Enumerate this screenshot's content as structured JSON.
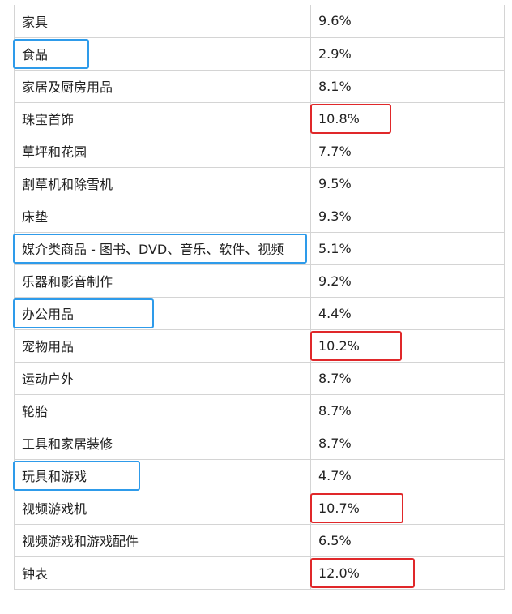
{
  "table": {
    "rows": [
      {
        "category": "家具",
        "rate": "9.6%"
      },
      {
        "category": "食品",
        "rate": "2.9%",
        "highlight": "blue"
      },
      {
        "category": "家居及厨房用品",
        "rate": "8.1%"
      },
      {
        "category": "珠宝首饰",
        "rate": "10.8%",
        "highlight": "red"
      },
      {
        "category": "草坪和花园",
        "rate": "7.7%"
      },
      {
        "category": "割草机和除雪机",
        "rate": "9.5%"
      },
      {
        "category": "床垫",
        "rate": "9.3%"
      },
      {
        "category": "媒介类商品 - 图书、DVD、音乐、软件、视频",
        "rate": "5.1%",
        "highlight": "blue"
      },
      {
        "category": "乐器和影音制作",
        "rate": "9.2%"
      },
      {
        "category": "办公用品",
        "rate": "4.4%",
        "highlight": "blue"
      },
      {
        "category": "宠物用品",
        "rate": "10.2%",
        "highlight": "red"
      },
      {
        "category": "运动户外",
        "rate": "8.7%"
      },
      {
        "category": "轮胎",
        "rate": "8.7%"
      },
      {
        "category": "工具和家居装修",
        "rate": "8.7%"
      },
      {
        "category": "玩具和游戏",
        "rate": "4.7%",
        "highlight": "blue"
      },
      {
        "category": "视频游戏机",
        "rate": "10.7%",
        "highlight": "red"
      },
      {
        "category": "视频游戏和游戏配件",
        "rate": "6.5%"
      },
      {
        "category": "钟表",
        "rate": "12.0%",
        "highlight": "red"
      }
    ]
  },
  "colors": {
    "highlight_blue": "#2e9bea",
    "highlight_red": "#e0282a",
    "border": "#d4d4d4"
  }
}
